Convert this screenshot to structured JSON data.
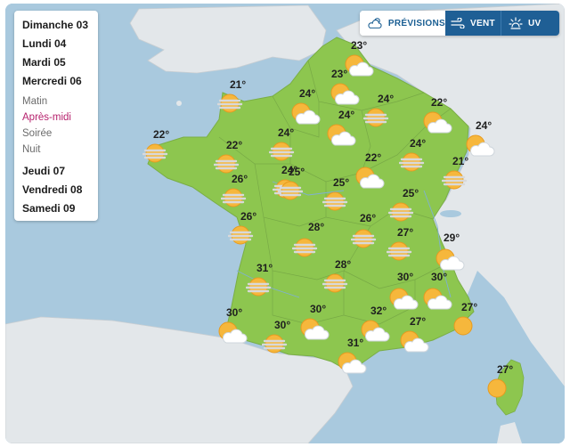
{
  "days": [
    {
      "label": "Dimanche 03"
    },
    {
      "label": "Lundi 04"
    },
    {
      "label": "Mardi 05"
    },
    {
      "label": "Mercredi 06"
    },
    {
      "label": "Jeudi 07"
    },
    {
      "label": "Vendredi 08"
    },
    {
      "label": "Samedi 09"
    }
  ],
  "periods": [
    {
      "label": "Matin",
      "active": false
    },
    {
      "label": "Après-midi",
      "active": true
    },
    {
      "label": "Soirée",
      "active": false
    },
    {
      "label": "Nuit",
      "active": false
    }
  ],
  "modes": {
    "previsions": {
      "label": "PRÉVISIONS",
      "icon": "cloud-sun-icon"
    },
    "vent": {
      "label": "VENT",
      "icon": "wind-icon"
    },
    "uv": {
      "label": "UV",
      "icon": "uv-sun-icon"
    }
  },
  "colors": {
    "land": "#8dc64f",
    "sea": "#a9c9de",
    "neighbors": "#e3e7ea",
    "accent": "#1f5f95",
    "active_period": "#b6216d"
  },
  "forecasts": [
    {
      "temp": "23°",
      "icon": "sun-cloud"
    },
    {
      "temp": "23°",
      "icon": "sun-cloud"
    },
    {
      "temp": "21°",
      "icon": "sun-haze"
    },
    {
      "temp": "24°",
      "icon": "sun-cloud"
    },
    {
      "temp": "24°",
      "icon": "sun-haze"
    },
    {
      "temp": "24°",
      "icon": "sun-cloud"
    },
    {
      "temp": "22°",
      "icon": "sun-cloud"
    },
    {
      "temp": "22°",
      "icon": "sun-haze"
    },
    {
      "temp": "24°",
      "icon": "sun-cloud"
    },
    {
      "temp": "24°",
      "icon": "sun-haze"
    },
    {
      "temp": "22°",
      "icon": "sun-haze"
    },
    {
      "temp": "24°",
      "icon": "sun-haze"
    },
    {
      "temp": "22°",
      "icon": "sun-cloud"
    },
    {
      "temp": "24°",
      "icon": "sun-haze"
    },
    {
      "temp": "21°",
      "icon": "sun-haze"
    },
    {
      "temp": "25°",
      "icon": "sun-haze"
    },
    {
      "temp": "26°",
      "icon": "sun-haze"
    },
    {
      "temp": "25°",
      "icon": "sun-haze"
    },
    {
      "temp": "25°",
      "icon": "sun-haze"
    },
    {
      "temp": "26°",
      "icon": "sun-haze"
    },
    {
      "temp": "28°",
      "icon": "sun-haze"
    },
    {
      "temp": "26°",
      "icon": "sun-haze"
    },
    {
      "temp": "27°",
      "icon": "sun-haze"
    },
    {
      "temp": "29°",
      "icon": "sun-cloud"
    },
    {
      "temp": "31°",
      "icon": "sun-haze"
    },
    {
      "temp": "28°",
      "icon": "sun-haze"
    },
    {
      "temp": "30°",
      "icon": "sun-cloud"
    },
    {
      "temp": "30°",
      "icon": "sun-cloud"
    },
    {
      "temp": "30°",
      "icon": "sun-cloud"
    },
    {
      "temp": "30°",
      "icon": "sun-cloud"
    },
    {
      "temp": "30°",
      "icon": "sun-haze"
    },
    {
      "temp": "32°",
      "icon": "sun-cloud"
    },
    {
      "temp": "27°",
      "icon": "sun-cloud"
    },
    {
      "temp": "27°",
      "icon": "sun"
    },
    {
      "temp": "31°",
      "icon": "sun-cloud"
    },
    {
      "temp": "27°",
      "icon": "sun"
    }
  ]
}
